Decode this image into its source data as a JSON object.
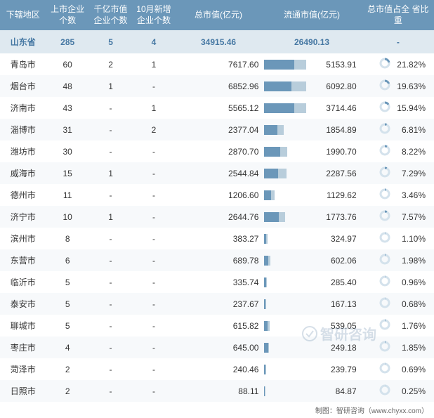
{
  "colors": {
    "header_bg": "#6b97b9",
    "header_text": "#ffffff",
    "total_bg": "#dfe9f0",
    "total_text": "#4678a3",
    "row_odd": "#f7f9fb",
    "row_even": "#ffffff",
    "bar_primary": "#6b97b9",
    "bar_secondary": "#b8cddb",
    "donut_fill": "#6b97b9",
    "donut_bg": "#d4e2ec",
    "text": "#333333"
  },
  "typography": {
    "font_family": "Microsoft YaHei",
    "base_size": 12,
    "header_size": 12
  },
  "headers": {
    "region": "下辖地区",
    "count1": "上市企业\n个数",
    "count2": "千亿市值\n企业个数",
    "count3": "10月新增\n企业个数",
    "total_value": "总市值(亿元)",
    "flow_value": "流通市值(亿元)",
    "pct": "总市值占全\n省比重"
  },
  "total_row": {
    "region": "山东省",
    "count1": "285",
    "count2": "5",
    "count3": "4",
    "total_value": "34915.46",
    "flow_value": "26490.13",
    "pct": "-"
  },
  "max_total_value": 7617.6,
  "max_flow_value": 6092.8,
  "rows": [
    {
      "region": "青岛市",
      "count1": "60",
      "count2": "2",
      "count3": "1",
      "total_value": "7617.60",
      "total_num": 7617.6,
      "flow_value": "5153.91",
      "flow_num": 5153.91,
      "pct": "21.82%",
      "pct_num": 21.82
    },
    {
      "region": "烟台市",
      "count1": "48",
      "count2": "1",
      "count3": "-",
      "total_value": "6852.96",
      "total_num": 6852.96,
      "flow_value": "6092.80",
      "flow_num": 6092.8,
      "pct": "19.63%",
      "pct_num": 19.63
    },
    {
      "region": "济南市",
      "count1": "43",
      "count2": "-",
      "count3": "1",
      "total_value": "5565.12",
      "total_num": 5565.12,
      "flow_value": "3714.46",
      "flow_num": 3714.46,
      "pct": "15.94%",
      "pct_num": 15.94
    },
    {
      "region": "淄博市",
      "count1": "31",
      "count2": "-",
      "count3": "2",
      "total_value": "2377.04",
      "total_num": 2377.04,
      "flow_value": "1854.89",
      "flow_num": 1854.89,
      "pct": "6.81%",
      "pct_num": 6.81
    },
    {
      "region": "潍坊市",
      "count1": "30",
      "count2": "-",
      "count3": "-",
      "total_value": "2870.70",
      "total_num": 2870.7,
      "flow_value": "1990.70",
      "flow_num": 1990.7,
      "pct": "8.22%",
      "pct_num": 8.22
    },
    {
      "region": "威海市",
      "count1": "15",
      "count2": "1",
      "count3": "-",
      "total_value": "2544.84",
      "total_num": 2544.84,
      "flow_value": "2287.56",
      "flow_num": 2287.56,
      "pct": "7.29%",
      "pct_num": 7.29
    },
    {
      "region": "德州市",
      "count1": "11",
      "count2": "-",
      "count3": "-",
      "total_value": "1206.60",
      "total_num": 1206.6,
      "flow_value": "1129.62",
      "flow_num": 1129.62,
      "pct": "3.46%",
      "pct_num": 3.46
    },
    {
      "region": "济宁市",
      "count1": "10",
      "count2": "1",
      "count3": "-",
      "total_value": "2644.76",
      "total_num": 2644.76,
      "flow_value": "1773.76",
      "flow_num": 1773.76,
      "pct": "7.57%",
      "pct_num": 7.57
    },
    {
      "region": "滨州市",
      "count1": "8",
      "count2": "-",
      "count3": "-",
      "total_value": "383.27",
      "total_num": 383.27,
      "flow_value": "324.97",
      "flow_num": 324.97,
      "pct": "1.10%",
      "pct_num": 1.1
    },
    {
      "region": "东营市",
      "count1": "6",
      "count2": "-",
      "count3": "-",
      "total_value": "689.78",
      "total_num": 689.78,
      "flow_value": "602.06",
      "flow_num": 602.06,
      "pct": "1.98%",
      "pct_num": 1.98
    },
    {
      "region": "临沂市",
      "count1": "5",
      "count2": "-",
      "count3": "-",
      "total_value": "335.74",
      "total_num": 335.74,
      "flow_value": "285.40",
      "flow_num": 285.4,
      "pct": "0.96%",
      "pct_num": 0.96
    },
    {
      "region": "泰安市",
      "count1": "5",
      "count2": "-",
      "count3": "-",
      "total_value": "237.67",
      "total_num": 237.67,
      "flow_value": "167.13",
      "flow_num": 167.13,
      "pct": "0.68%",
      "pct_num": 0.68
    },
    {
      "region": "聊城市",
      "count1": "5",
      "count2": "-",
      "count3": "-",
      "total_value": "615.82",
      "total_num": 615.82,
      "flow_value": "539.05",
      "flow_num": 539.05,
      "pct": "1.76%",
      "pct_num": 1.76
    },
    {
      "region": "枣庄市",
      "count1": "4",
      "count2": "-",
      "count3": "-",
      "total_value": "645.00",
      "total_num": 645.0,
      "flow_value": "249.18",
      "flow_num": 249.18,
      "pct": "1.85%",
      "pct_num": 1.85
    },
    {
      "region": "菏泽市",
      "count1": "2",
      "count2": "-",
      "count3": "-",
      "total_value": "240.46",
      "total_num": 240.46,
      "flow_value": "239.79",
      "flow_num": 239.79,
      "pct": "0.69%",
      "pct_num": 0.69
    },
    {
      "region": "日照市",
      "count1": "2",
      "count2": "-",
      "count3": "-",
      "total_value": "88.11",
      "total_num": 88.11,
      "flow_value": "84.87",
      "flow_num": 84.87,
      "pct": "0.25%",
      "pct_num": 0.25
    }
  ],
  "footer_text": "制图：智研咨询（www.chyxx.com）",
  "watermark_text": "智研咨询"
}
